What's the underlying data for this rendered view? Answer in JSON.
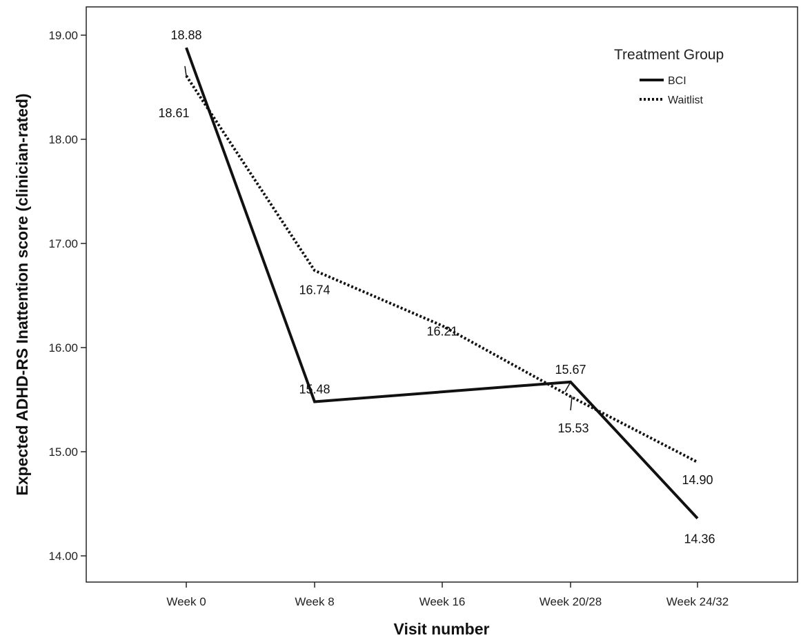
{
  "chart_data": {
    "type": "line",
    "xlabel": "Visit number",
    "ylabel": "Expected ADHD-RS Inattention score (clinician-rated)",
    "categories": [
      "Week 0",
      "Week 8",
      "Week 16",
      "Week 20/28",
      "Week 24/32"
    ],
    "ylim": [
      13.7,
      19.28
    ],
    "yticks": [
      14,
      15,
      16,
      17,
      18,
      19
    ],
    "ytick_labels": [
      "14.00",
      "15.00",
      "16.00",
      "17.00",
      "18.00",
      "19.00"
    ],
    "grid": false,
    "legend": {
      "title": "Treatment Group",
      "position": "top-right"
    },
    "series": [
      {
        "name": "BCI",
        "style": "solid",
        "color": "#111111",
        "points": [
          {
            "category": "Week 0",
            "value": 18.88,
            "label": "18.88"
          },
          {
            "category": "Week 8",
            "value": 15.48,
            "label": "15.48"
          },
          {
            "category": "Week 20/28",
            "value": 15.67,
            "label": "15.67"
          },
          {
            "category": "Week 24/32",
            "value": 14.36,
            "label": "14.36"
          }
        ]
      },
      {
        "name": "Waitlist",
        "style": "dotted",
        "color": "#111111",
        "points": [
          {
            "category": "Week 0",
            "value": 18.61,
            "label": "18.61"
          },
          {
            "category": "Week 8",
            "value": 16.74,
            "label": "16.74"
          },
          {
            "category": "Week 16",
            "value": 16.21,
            "label": "16.21"
          },
          {
            "category": "Week 20/28",
            "value": 15.53,
            "label": "15.53"
          },
          {
            "category": "Week 24/32",
            "value": 14.9,
            "label": "14.90"
          }
        ]
      }
    ]
  }
}
